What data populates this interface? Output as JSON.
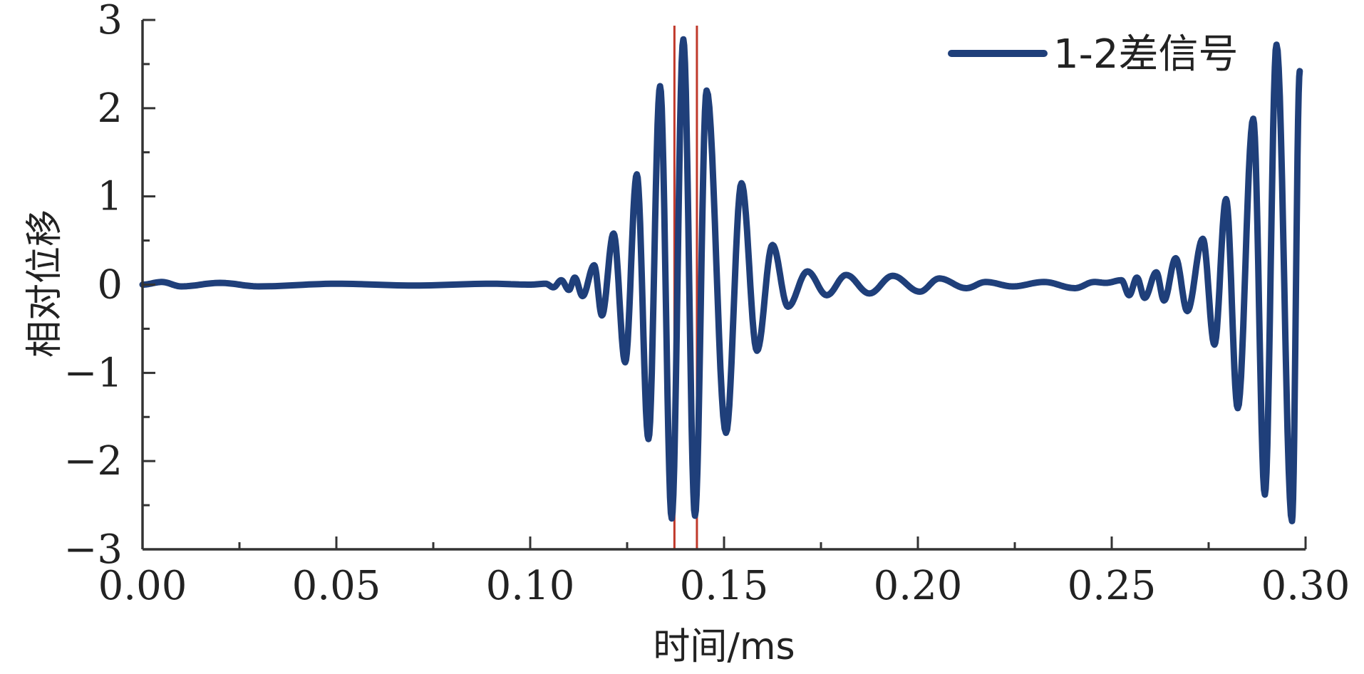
{
  "chart_data": {
    "type": "line",
    "title": "",
    "xlabel": "时间/ms",
    "ylabel": "相对位移",
    "xlim": [
      0.0,
      0.3
    ],
    "ylim": [
      -3,
      3
    ],
    "x_ticks": [
      "0.00",
      "0.05",
      "0.10",
      "0.15",
      "0.20",
      "0.25",
      "0.30"
    ],
    "y_ticks": [
      "3",
      "2",
      "1",
      "0",
      "−1",
      "−2",
      "−3"
    ],
    "grid": false,
    "legend": {
      "position": "top-right"
    },
    "series": [
      {
        "name": "1-2差信号",
        "color": "#1f3f7a",
        "peaks": [
          [
            0.0,
            0.0
          ],
          [
            0.005,
            0.03
          ],
          [
            0.01,
            -0.02
          ],
          [
            0.02,
            0.02
          ],
          [
            0.03,
            -0.02
          ],
          [
            0.05,
            0.01
          ],
          [
            0.07,
            -0.01
          ],
          [
            0.09,
            0.01
          ],
          [
            0.1,
            0.0
          ],
          [
            0.104,
            0.01
          ],
          [
            0.106,
            -0.03
          ],
          [
            0.108,
            0.05
          ],
          [
            0.11,
            -0.06
          ],
          [
            0.1115,
            0.08
          ],
          [
            0.1135,
            -0.13
          ],
          [
            0.1165,
            0.22
          ],
          [
            0.1185,
            -0.35
          ],
          [
            0.1215,
            0.58
          ],
          [
            0.1245,
            -0.88
          ],
          [
            0.1275,
            1.25
          ],
          [
            0.1305,
            -1.75
          ],
          [
            0.1335,
            2.25
          ],
          [
            0.1365,
            -2.65
          ],
          [
            0.1395,
            2.78
          ],
          [
            0.1425,
            -2.62
          ],
          [
            0.1455,
            2.2
          ],
          [
            0.1505,
            -1.68
          ],
          [
            0.1545,
            1.15
          ],
          [
            0.1585,
            -0.75
          ],
          [
            0.1625,
            0.45
          ],
          [
            0.1665,
            -0.25
          ],
          [
            0.1715,
            0.15
          ],
          [
            0.1765,
            -0.12
          ],
          [
            0.1815,
            0.11
          ],
          [
            0.1875,
            -0.1
          ],
          [
            0.1935,
            0.1
          ],
          [
            0.2005,
            -0.08
          ],
          [
            0.2055,
            0.07
          ],
          [
            0.2125,
            -0.04
          ],
          [
            0.2175,
            0.03
          ],
          [
            0.2245,
            -0.02
          ],
          [
            0.2325,
            0.03
          ],
          [
            0.2405,
            -0.04
          ],
          [
            0.2455,
            0.03
          ],
          [
            0.2485,
            0.02
          ],
          [
            0.2525,
            0.05
          ],
          [
            0.2545,
            -0.12
          ],
          [
            0.2565,
            0.08
          ],
          [
            0.2585,
            -0.15
          ],
          [
            0.2615,
            0.14
          ],
          [
            0.2635,
            -0.18
          ],
          [
            0.2665,
            0.3
          ],
          [
            0.2695,
            -0.3
          ],
          [
            0.2735,
            0.52
          ],
          [
            0.2765,
            -0.68
          ],
          [
            0.2795,
            0.97
          ],
          [
            0.2825,
            -1.4
          ],
          [
            0.2865,
            1.88
          ],
          [
            0.2895,
            -2.38
          ],
          [
            0.2925,
            2.72
          ],
          [
            0.2965,
            -2.68
          ],
          [
            0.2985,
            2.42
          ]
        ]
      }
    ],
    "vertical_lines": [
      {
        "x": 0.1372,
        "color": "#c0392b"
      },
      {
        "x": 0.143,
        "color": "#c0392b"
      }
    ]
  }
}
